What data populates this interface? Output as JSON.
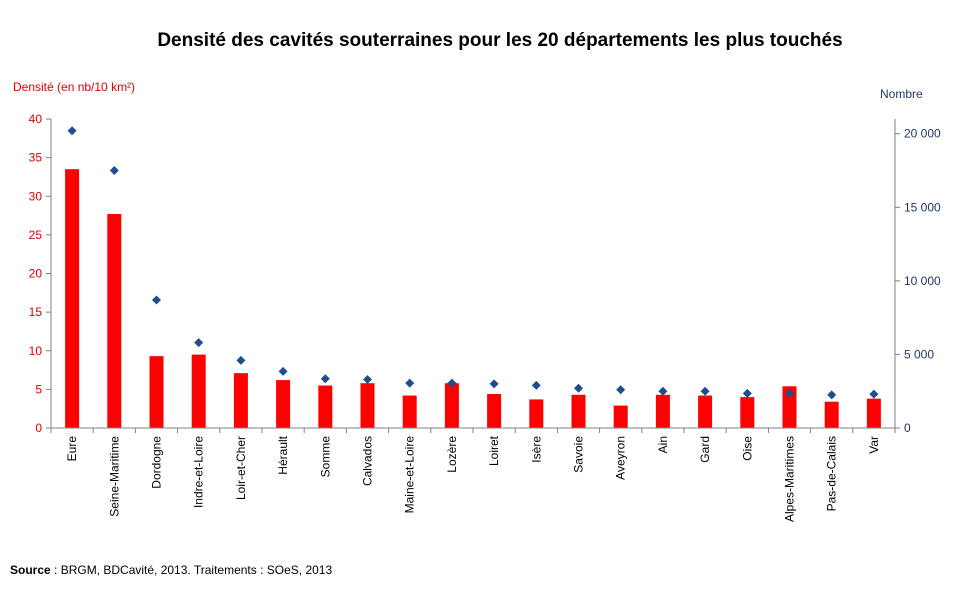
{
  "chart_data": {
    "type": "bar",
    "title": "Densité des cavités souterraines pour les 20 départements les plus touchés",
    "ylabel": "Densité (en nb/10 km²)",
    "y2label": "Nombre",
    "ylim": [
      0,
      40
    ],
    "y2lim": [
      0,
      21000
    ],
    "yticks": [
      "0",
      "5",
      "10",
      "15",
      "20",
      "25",
      "30",
      "35",
      "40"
    ],
    "y2ticks": [
      "0",
      "5 000",
      "10 000",
      "15 000",
      "20 000"
    ],
    "categories": [
      "Eure",
      "Seine-Maritime",
      "Dordogne",
      "Indre-et-Loire",
      "Loir-et-Cher",
      "Hérault",
      "Somme",
      "Calvados",
      "Maine-et-Loire",
      "Lozère",
      "Loiret",
      "Isère",
      "Savoie",
      "Aveyron",
      "Ain",
      "Gard",
      "Oise",
      "Alpes-Maritimes",
      "Pas-de-Calais",
      "Var"
    ],
    "series": [
      {
        "type": "bar",
        "axis": "left",
        "color": "#ff0000",
        "values": [
          33.5,
          27.7,
          9.3,
          9.5,
          7.1,
          6.2,
          5.5,
          5.8,
          4.2,
          5.8,
          4.4,
          3.7,
          4.3,
          2.9,
          4.3,
          4.2,
          4.0,
          5.4,
          3.4,
          3.8
        ]
      },
      {
        "type": "scatter",
        "axis": "right",
        "color": "#1f4e8c",
        "values": [
          20200,
          17500,
          8700,
          5800,
          4600,
          3850,
          3350,
          3300,
          3050,
          3050,
          3000,
          2900,
          2700,
          2600,
          2500,
          2500,
          2350,
          2350,
          2250,
          2300
        ]
      }
    ]
  },
  "source": {
    "label": "Source",
    "text": " : BRGM, BDCavité, 2013. Traitements : SOeS, 2013"
  }
}
